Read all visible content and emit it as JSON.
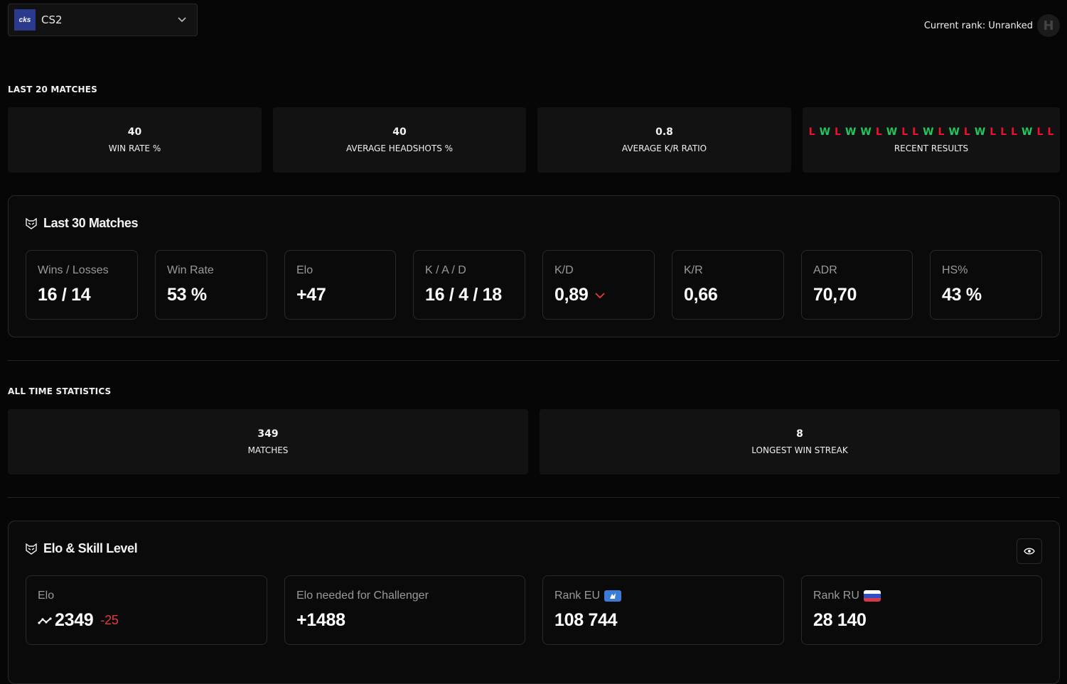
{
  "header": {
    "game_logo_text": "cks",
    "game_selector": "CS2",
    "current_rank": "Current rank: Unranked",
    "rank_badge_glyph": "H"
  },
  "last20": {
    "title": "LAST 20 MATCHES",
    "tiles": [
      {
        "value": "40",
        "label": "WIN RATE %"
      },
      {
        "value": "40",
        "label": "AVERAGE HEADSHOTS %"
      },
      {
        "value": "0.8",
        "label": "AVERAGE K/R RATIO"
      }
    ],
    "recent_results": [
      "L",
      "W",
      "L",
      "W",
      "W",
      "L",
      "W",
      "L",
      "L",
      "W",
      "L",
      "W",
      "L",
      "W",
      "L",
      "L",
      "L",
      "W",
      "L",
      "L"
    ],
    "recent_results_label": "RECENT RESULTS",
    "colors": {
      "win": "#22c55e",
      "loss": "#f0102e"
    }
  },
  "last30": {
    "title": "Last 30 Matches",
    "cards": [
      {
        "label": "Wins / Losses",
        "value": "16 / 14"
      },
      {
        "label": "Win Rate",
        "value": "53 %"
      },
      {
        "label": "Elo",
        "value": "+47"
      },
      {
        "label": "K / A / D",
        "value": "16 / 4 / 18"
      },
      {
        "label": "K/D",
        "value": "0,89",
        "trend": "down"
      },
      {
        "label": "K/R",
        "value": "0,66"
      },
      {
        "label": "ADR",
        "value": "70,70"
      },
      {
        "label": "HS%",
        "value": "43 %"
      }
    ]
  },
  "alltime": {
    "title": "ALL TIME STATISTICS",
    "tiles": [
      {
        "value": "349",
        "label": "MATCHES"
      },
      {
        "value": "8",
        "label": "LONGEST WIN STREAK"
      }
    ]
  },
  "elo": {
    "title": "Elo & Skill Level",
    "cards": [
      {
        "label": "Elo",
        "value": "2349",
        "delta": "-25"
      },
      {
        "label": "Elo needed for Challenger",
        "value": "+1488"
      },
      {
        "label": "Rank EU",
        "value": "108 744"
      },
      {
        "label": "Rank RU",
        "value": "28 140"
      }
    ]
  }
}
